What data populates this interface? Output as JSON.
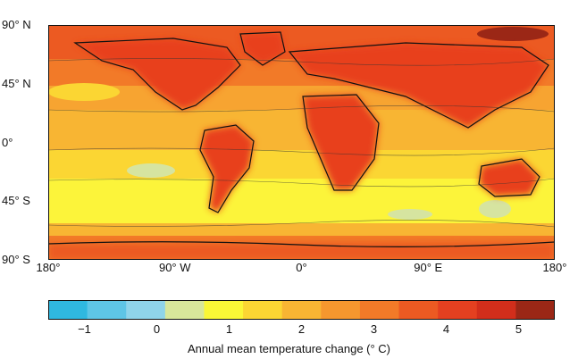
{
  "map": {
    "lat_labels": [
      {
        "text": "90° N",
        "lat": 90
      },
      {
        "text": "45° N",
        "lat": 45
      },
      {
        "text": "0°",
        "lat": 0
      },
      {
        "text": "45° S",
        "lat": -45
      },
      {
        "text": "90° S",
        "lat": -90
      }
    ],
    "lon_labels": [
      {
        "text": "180°",
        "lon": -180
      },
      {
        "text": "90° W",
        "lon": -90
      },
      {
        "text": "0°",
        "lon": 0
      },
      {
        "text": "90° E",
        "lon": 90
      },
      {
        "text": "180°",
        "lon": 180
      }
    ],
    "colors": {
      "warm_high": "#e8401e",
      "warm_mid": "#f47a2a",
      "ocean_mid": "#f7a431",
      "ocean_low": "#fbd835",
      "southern_ocean": "#fcf43a",
      "min_patch": "#d6e4a0",
      "arctic_max": "#a6281a",
      "coast": "#111111"
    }
  },
  "colorbar": {
    "title": "Annual mean temperature change (° C)",
    "range": [
      -1.5,
      5.5
    ],
    "colors": [
      "#2fb8e0",
      "#5ec5e6",
      "#8fd4ea",
      "#d8e79b",
      "#faf736",
      "#fbd633",
      "#f8b533",
      "#f6972e",
      "#f27a28",
      "#ec5a22",
      "#e44020",
      "#d22e1b",
      "#9b2716"
    ],
    "ticks": [
      {
        "value": -1,
        "label": "−1"
      },
      {
        "value": 0,
        "label": "0"
      },
      {
        "value": 1,
        "label": "1"
      },
      {
        "value": 2,
        "label": "2"
      },
      {
        "value": 3,
        "label": "3"
      },
      {
        "value": 4,
        "label": "4"
      },
      {
        "value": 5,
        "label": "5"
      }
    ]
  }
}
